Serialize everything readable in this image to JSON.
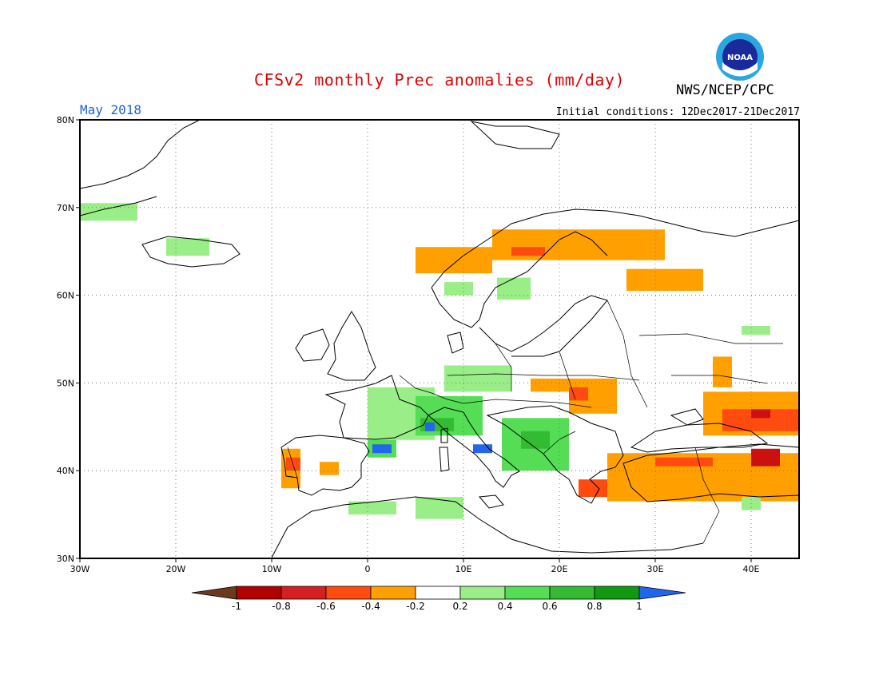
{
  "title": "CFSv2 monthly Prec anomalies (mm/day)",
  "month_label": "May 2018",
  "initial_conditions": "Initial conditions: 12Dec2017-21Dec2017",
  "agency": "NWS/NCEP/CPC",
  "logo_text": "NOAA",
  "map": {
    "lon_range": [
      -30,
      45
    ],
    "lat_range": [
      30,
      80
    ],
    "lon_ticks": [
      "30W",
      "20W",
      "10W",
      "0",
      "10E",
      "20E",
      "30E",
      "40E"
    ],
    "lat_ticks": [
      "30N",
      "40N",
      "50N",
      "60N",
      "70N",
      "80N"
    ],
    "grid": "dotted"
  },
  "colorbar": {
    "labels": [
      "-1",
      "-0.8",
      "-0.6",
      "-0.4",
      "-0.2",
      "0.2",
      "0.4",
      "0.6",
      "0.8",
      "1"
    ],
    "colors": [
      "#6b3a1e",
      "#b30000",
      "#d42020",
      "#ff4a10",
      "#ffa000",
      "#ffffff",
      "#99ee88",
      "#55dd55",
      "#33bb33",
      "#119911",
      "#2266ee"
    ]
  },
  "colors": {
    "strong_dry": "#cc1010",
    "moderate_dry": "#ff4a10",
    "weak_dry": "#ffa000",
    "weak_wet": "#99ee88",
    "moderate_wet": "#55dd55",
    "strong_wet": "#33bb33",
    "very_strong_wet": "#119911",
    "extreme_wet": "#2266ee"
  },
  "anomaly_regions": [
    {
      "name": "Greenland east coast wet",
      "lon": [
        -30,
        -24
      ],
      "lat": [
        68.5,
        70.5
      ],
      "class": "weak_wet"
    },
    {
      "name": "Iceland wet",
      "lon": [
        -21,
        -16.5
      ],
      "lat": [
        64.5,
        66.5
      ],
      "class": "weak_wet"
    },
    {
      "name": "Scandinavia dry",
      "lon": [
        5,
        13
      ],
      "lat": [
        62.5,
        65.5
      ],
      "class": "weak_dry"
    },
    {
      "name": "Northern Sweden dry",
      "lon": [
        13,
        31
      ],
      "lat": [
        64,
        67.5
      ],
      "class": "weak_dry"
    },
    {
      "name": "Northern Sweden core",
      "lon": [
        15,
        18.5
      ],
      "lat": [
        64.5,
        65.5
      ],
      "class": "moderate_dry"
    },
    {
      "name": "Western Russia dry",
      "lon": [
        27,
        35
      ],
      "lat": [
        60.5,
        63
      ],
      "class": "weak_dry"
    },
    {
      "name": "Southern Norway wet",
      "lon": [
        8,
        11
      ],
      "lat": [
        60,
        61.5
      ],
      "class": "weak_wet"
    },
    {
      "name": "Sweden wet",
      "lon": [
        13.5,
        17
      ],
      "lat": [
        59.5,
        62
      ],
      "class": "weak_wet"
    },
    {
      "name": "Central Russia dry",
      "lon": [
        36,
        38
      ],
      "lat": [
        49.5,
        53
      ],
      "class": "weak_dry"
    },
    {
      "name": "Russia wet patch",
      "lon": [
        39,
        42
      ],
      "lat": [
        55.5,
        56.5
      ],
      "class": "weak_wet"
    },
    {
      "name": "Ukraine dry",
      "lon": [
        21,
        26
      ],
      "lat": [
        46.5,
        50.5
      ],
      "class": "weak_dry"
    },
    {
      "name": "Carpathian dry core",
      "lon": [
        21,
        23
      ],
      "lat": [
        48,
        49.5
      ],
      "class": "moderate_dry"
    },
    {
      "name": "Hungary dry",
      "lon": [
        17,
        21
      ],
      "lat": [
        49,
        50.5
      ],
      "class": "weak_dry"
    },
    {
      "name": "Caspian-Caucasus dry",
      "lon": [
        35,
        45
      ],
      "lat": [
        44,
        49
      ],
      "class": "weak_dry"
    },
    {
      "name": "Caspian-Caucasus core",
      "lon": [
        37,
        45
      ],
      "lat": [
        44.5,
        47
      ],
      "class": "moderate_dry"
    },
    {
      "name": "Caucasus strong dry",
      "lon": [
        40,
        42
      ],
      "lat": [
        46,
        47
      ],
      "class": "strong_dry"
    },
    {
      "name": "Anatolia dry",
      "lon": [
        25,
        45
      ],
      "lat": [
        36.5,
        42
      ],
      "class": "weak_dry"
    },
    {
      "name": "Anatolia core",
      "lon": [
        30,
        36
      ],
      "lat": [
        40.5,
        41.5
      ],
      "class": "moderate_dry"
    },
    {
      "name": "Eastern Anatolia strong",
      "lon": [
        40,
        43
      ],
      "lat": [
        40.5,
        42.5
      ],
      "class": "strong_dry"
    },
    {
      "name": "Aegean dry",
      "lon": [
        22,
        25
      ],
      "lat": [
        37,
        39
      ],
      "class": "moderate_dry"
    },
    {
      "name": "Iberia west dry",
      "lon": [
        -9,
        -7
      ],
      "lat": [
        38,
        42.5
      ],
      "class": "weak_dry"
    },
    {
      "name": "Portugal core",
      "lon": [
        -8.5,
        -7
      ],
      "lat": [
        40,
        41.5
      ],
      "class": "moderate_dry"
    },
    {
      "name": "Central Spain dry",
      "lon": [
        -5,
        -3
      ],
      "lat": [
        39.5,
        41
      ],
      "class": "weak_dry"
    },
    {
      "name": "France wet",
      "lon": [
        0,
        7
      ],
      "lat": [
        43.5,
        49.5
      ],
      "class": "weak_wet"
    },
    {
      "name": "Alps wet",
      "lon": [
        5,
        12
      ],
      "lat": [
        44,
        48.5
      ],
      "class": "moderate_wet"
    },
    {
      "name": "Alps core",
      "lon": [
        5.5,
        9
      ],
      "lat": [
        44.5,
        46
      ],
      "class": "strong_wet"
    },
    {
      "name": "Germany-Czech wet",
      "lon": [
        8,
        15
      ],
      "lat": [
        49,
        52
      ],
      "class": "weak_wet"
    },
    {
      "name": "Pyrenees wet",
      "lon": [
        0,
        3
      ],
      "lat": [
        41.5,
        43.5
      ],
      "class": "moderate_wet"
    },
    {
      "name": "Pyrenees extreme",
      "lon": [
        0.5,
        2.5
      ],
      "lat": [
        42,
        43
      ],
      "class": "extreme_wet"
    },
    {
      "name": "Western Alps extreme",
      "lon": [
        6,
        7
      ],
      "lat": [
        44.5,
        45.5
      ],
      "class": "extreme_wet"
    },
    {
      "name": "Central Italy extreme",
      "lon": [
        11,
        13
      ],
      "lat": [
        42,
        43
      ],
      "class": "extreme_wet"
    },
    {
      "name": "Balkans wet",
      "lon": [
        14,
        21
      ],
      "lat": [
        40,
        46
      ],
      "class": "moderate_wet"
    },
    {
      "name": "Balkans core",
      "lon": [
        16,
        19
      ],
      "lat": [
        42.5,
        44.5
      ],
      "class": "strong_wet"
    },
    {
      "name": "North Africa wet",
      "lon": [
        -2,
        3
      ],
      "lat": [
        35,
        36.5
      ],
      "class": "weak_wet"
    },
    {
      "name": "Algeria-Tunisia wet",
      "lon": [
        5,
        10
      ],
      "lat": [
        34.5,
        37
      ],
      "class": "weak_wet"
    },
    {
      "name": "Middle East wet",
      "lon": [
        39,
        41
      ],
      "lat": [
        35.5,
        37
      ],
      "class": "weak_wet"
    }
  ]
}
